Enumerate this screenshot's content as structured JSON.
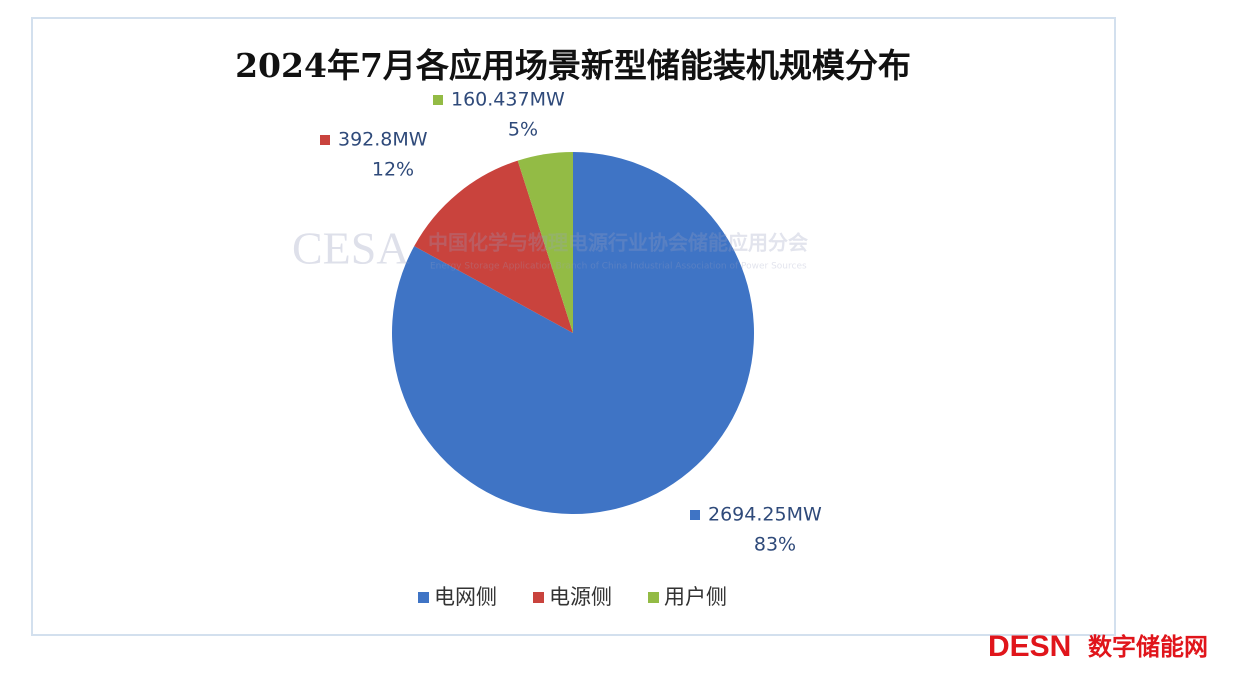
{
  "chart_data": {
    "type": "pie",
    "title": "2024年7月各应用场景新型储能装机规模分布",
    "categories": [
      "电网侧",
      "电源侧",
      "用户侧"
    ],
    "values": [
      2694.25,
      392.8,
      160.437
    ],
    "value_labels": [
      "2694.25MW",
      "392.8MW",
      "160.437MW"
    ],
    "percents": [
      83,
      12,
      5
    ],
    "percent_labels": [
      "83%",
      "12%",
      "5%"
    ],
    "colors": [
      "#3f74c5",
      "#c9433d",
      "#93bb45"
    ],
    "legend": "bottom",
    "watermark": {
      "mark": "CESA",
      "name": "中国化学与物理电源行业协会储能应用分会",
      "subtitle": "Energy Storage Application Branch of China Industrial Association of Power Sources"
    },
    "logo": {
      "mark": "DESN",
      "name": "数字储能网"
    }
  }
}
